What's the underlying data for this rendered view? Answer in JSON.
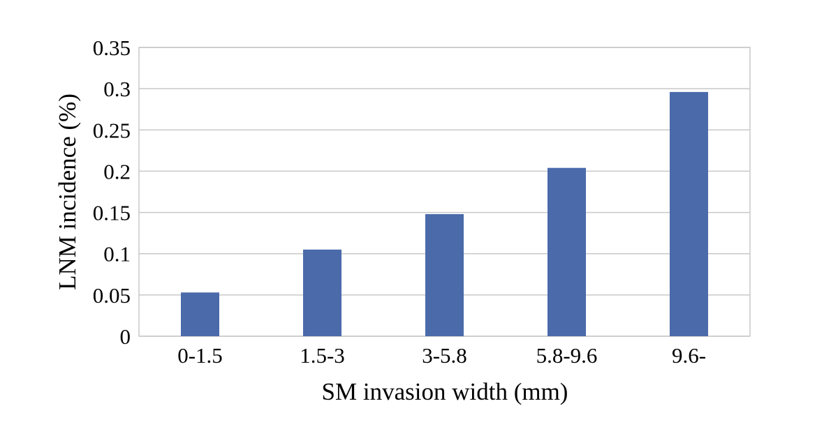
{
  "chart_data": {
    "type": "bar",
    "title": "",
    "xlabel": "SM invasion width (mm)",
    "ylabel": "LNM incidence (%)",
    "categories": [
      "0-1.5",
      "1.5-3",
      "3-5.8",
      "5.8-9.6",
      "9.6-"
    ],
    "values": [
      0.053,
      0.105,
      0.148,
      0.204,
      0.296
    ],
    "ylim": [
      0,
      0.35
    ],
    "yticks": [
      "0",
      "0.05",
      "0.1",
      "0.15",
      "0.2",
      "0.25",
      "0.3",
      "0.35"
    ],
    "grid": true,
    "legend": "none",
    "colors": {
      "bar": "#4a6aaa",
      "grid": "#c8c8c8",
      "frame": "#c8c8c8"
    }
  }
}
